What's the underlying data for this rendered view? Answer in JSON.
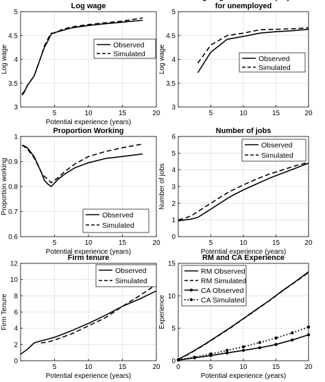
{
  "chart_data": [
    {
      "type": "line",
      "title": "Log wage",
      "xlabel": "Potential experience (years)",
      "ylabel": "Log wage",
      "xlim": [
        0,
        20
      ],
      "ylim": [
        3,
        5
      ],
      "xticks": [
        5,
        10,
        15,
        20
      ],
      "yticks": [
        3,
        3.5,
        4,
        4.5,
        5
      ],
      "grid": true,
      "legend": "center-right",
      "series": [
        {
          "name": "Observed",
          "style": "solid",
          "x": [
            0.2,
            0.5,
            1.0,
            2.0,
            3.0,
            3.5,
            4.0,
            4.5,
            5.0,
            5.5,
            6.0,
            7.0,
            8.0,
            10.0,
            12.0,
            15.0,
            18.0
          ],
          "y": [
            3.25,
            3.3,
            3.45,
            3.65,
            4.05,
            4.25,
            4.38,
            4.53,
            4.56,
            4.58,
            4.6,
            4.64,
            4.67,
            4.71,
            4.74,
            4.78,
            4.82
          ]
        },
        {
          "name": "Simulated",
          "style": "dashed",
          "x": [
            0.2,
            0.5,
            1.0,
            2.0,
            3.0,
            3.5,
            4.0,
            4.5,
            5.0,
            5.5,
            6.0,
            7.0,
            8.0,
            10.0,
            12.0,
            15.0,
            18.0
          ],
          "y": [
            3.27,
            3.32,
            3.45,
            3.65,
            4.05,
            4.28,
            4.42,
            4.55,
            4.55,
            4.58,
            4.62,
            4.66,
            4.69,
            4.73,
            4.76,
            4.8,
            4.87
          ]
        }
      ]
    },
    {
      "type": "line",
      "title": "Last log wage before unemployment\nfor unemployed",
      "xlabel": "",
      "ylabel": "Log wage",
      "xlim": [
        0,
        20
      ],
      "ylim": [
        3,
        5
      ],
      "xticks": [
        5,
        10,
        15,
        20
      ],
      "yticks": [
        3,
        3.5,
        4,
        4.5,
        5
      ],
      "grid": true,
      "legend": "center-right",
      "series": [
        {
          "name": "Observed",
          "style": "solid",
          "x": [
            3,
            5,
            7.5,
            10,
            12.5,
            15,
            17.5,
            20
          ],
          "y": [
            3.72,
            4.15,
            4.42,
            4.48,
            4.55,
            4.58,
            4.6,
            4.63
          ]
        },
        {
          "name": "Simulated",
          "style": "dashed",
          "x": [
            3,
            5,
            7.5,
            10,
            12.5,
            15,
            17.5,
            20
          ],
          "y": [
            3.92,
            4.3,
            4.5,
            4.55,
            4.62,
            4.63,
            4.64,
            4.66
          ]
        }
      ]
    },
    {
      "type": "line",
      "title": "Proportion Working",
      "xlabel": "Potential experience (years)",
      "ylabel": "Proportion working",
      "xlim": [
        0,
        20
      ],
      "ylim": [
        0.6,
        1
      ],
      "xticks": [
        5,
        10,
        15,
        20
      ],
      "yticks": [
        0.6,
        0.7,
        0.8,
        0.9,
        1
      ],
      "grid": true,
      "legend": "bottom-right",
      "series": [
        {
          "name": "Observed",
          "style": "solid",
          "x": [
            0.2,
            0.5,
            1.0,
            2.0,
            3.0,
            3.5,
            4.0,
            4.5,
            5.5,
            6.5,
            8.0,
            10.0,
            12.5,
            15.0,
            18.0
          ],
          "y": [
            0.965,
            0.963,
            0.955,
            0.92,
            0.86,
            0.825,
            0.81,
            0.8,
            0.828,
            0.85,
            0.875,
            0.895,
            0.912,
            0.92,
            0.93
          ]
        },
        {
          "name": "Simulated",
          "style": "dashed",
          "x": [
            0.2,
            0.5,
            1.0,
            2.0,
            3.0,
            3.5,
            4.0,
            4.5,
            5.5,
            6.5,
            8.0,
            10.0,
            12.5,
            15.0,
            18.0
          ],
          "y": [
            0.965,
            0.96,
            0.95,
            0.915,
            0.86,
            0.84,
            0.83,
            0.815,
            0.835,
            0.86,
            0.89,
            0.92,
            0.94,
            0.955,
            0.97
          ]
        }
      ]
    },
    {
      "type": "line",
      "title": "Number of jobs",
      "xlabel": "Potential experience (years)",
      "ylabel": "Number of jobs",
      "xlim": [
        0,
        20
      ],
      "ylim": [
        0,
        6
      ],
      "xticks": [
        5,
        10,
        15,
        20
      ],
      "yticks": [
        0,
        1,
        2,
        3,
        4,
        5,
        6
      ],
      "grid": true,
      "legend": "top-right",
      "series": [
        {
          "name": "Observed",
          "style": "solid",
          "x": [
            0,
            1,
            2,
            3,
            4,
            5,
            6,
            7,
            8,
            10,
            12,
            14,
            16,
            18,
            20
          ],
          "y": [
            0.95,
            1.0,
            1.05,
            1.15,
            1.4,
            1.65,
            1.9,
            2.15,
            2.4,
            2.8,
            3.15,
            3.5,
            3.8,
            4.1,
            4.4
          ]
        },
        {
          "name": "Simulated",
          "style": "dashed",
          "x": [
            0,
            1,
            2,
            3,
            4,
            5,
            6,
            7,
            8,
            10,
            12,
            14,
            16,
            18,
            20
          ],
          "y": [
            1.0,
            1.1,
            1.25,
            1.5,
            1.75,
            2.0,
            2.25,
            2.5,
            2.72,
            3.1,
            3.45,
            3.75,
            4.0,
            4.25,
            4.45
          ]
        }
      ]
    },
    {
      "type": "line",
      "title": "Firm tenure",
      "xlabel": "Potential experience (years)",
      "ylabel": "Firm Tenure",
      "xlim": [
        0,
        20
      ],
      "ylim": [
        0,
        12
      ],
      "xticks": [
        5,
        10,
        15,
        20
      ],
      "yticks": [
        0,
        2,
        4,
        6,
        8,
        10,
        12
      ],
      "grid": true,
      "legend": "top-right",
      "series": [
        {
          "name": "Observed",
          "style": "solid",
          "x": [
            0,
            1,
            2,
            3,
            4,
            5,
            6,
            7.5,
            10,
            12.5,
            15,
            17.5,
            20
          ],
          "y": [
            0.8,
            1.4,
            2.2,
            2.45,
            2.65,
            2.9,
            3.2,
            3.7,
            4.6,
            5.6,
            6.7,
            7.6,
            8.6
          ]
        },
        {
          "name": "Simulated",
          "style": "dashed",
          "x": [
            3,
            4,
            5,
            6,
            7.5,
            10,
            12.5,
            15,
            17.5,
            20
          ],
          "y": [
            2.2,
            2.3,
            2.55,
            2.85,
            3.3,
            4.3,
            5.3,
            6.7,
            8.0,
            9.4
          ]
        }
      ]
    },
    {
      "type": "line",
      "title": "RM and CA Experience",
      "xlabel": "Potential experience (years)",
      "ylabel": "Experience",
      "xlim": [
        0,
        20
      ],
      "ylim": [
        0,
        15
      ],
      "xticks": [
        0,
        5,
        10,
        15,
        20
      ],
      "yticks": [
        0,
        5,
        10,
        15
      ],
      "grid": true,
      "legend": "top-left",
      "series": [
        {
          "name": "RM Observed",
          "style": "solid",
          "marker": "none",
          "x": [
            0,
            2,
            4,
            6,
            8,
            10,
            12,
            14,
            16,
            18,
            20
          ],
          "y": [
            0.2,
            1.3,
            2.5,
            3.8,
            5.1,
            6.5,
            7.9,
            9.3,
            10.8,
            12.2,
            13.7
          ]
        },
        {
          "name": "RM Simulated",
          "style": "dashed",
          "marker": "none",
          "x": [
            0,
            2,
            4,
            6,
            8,
            10,
            12,
            14,
            16,
            18,
            20
          ],
          "y": [
            0.2,
            1.25,
            2.45,
            3.75,
            5.05,
            6.45,
            7.85,
            9.25,
            10.75,
            12.15,
            13.6
          ]
        },
        {
          "name": "CA Observed",
          "style": "solid",
          "marker": "dot",
          "x": [
            0,
            2.5,
            5,
            7.5,
            10,
            12.5,
            15,
            17.5,
            20
          ],
          "y": [
            0.1,
            0.45,
            0.8,
            1.2,
            1.6,
            2.0,
            2.5,
            3.2,
            4.0
          ]
        },
        {
          "name": "CA Simulated",
          "style": "dotted",
          "marker": "dot",
          "x": [
            0,
            2.5,
            5,
            7.5,
            10,
            12.5,
            15,
            17.5,
            20
          ],
          "y": [
            0.15,
            0.55,
            1.05,
            1.6,
            2.15,
            2.8,
            3.5,
            4.3,
            5.2
          ]
        }
      ]
    }
  ]
}
